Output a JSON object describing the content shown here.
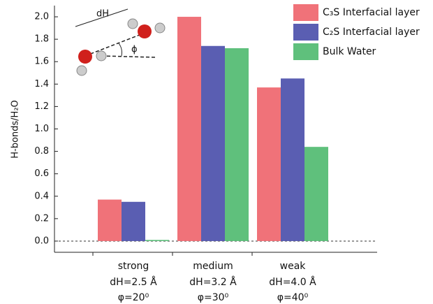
{
  "chart_data": {
    "type": "bar",
    "ylabel": "H-bonds/H₂O",
    "categories": [
      "strong",
      "medium",
      "weak"
    ],
    "category_details": [
      [
        "dH=2.5 Å",
        "φ=20⁰"
      ],
      [
        "dH=3.2 Å",
        "φ=30⁰"
      ],
      [
        "dH=4.0 Å",
        "φ=40⁰"
      ]
    ],
    "series": [
      {
        "name": "C₃S Interfacial layer",
        "color": "#f07279",
        "values": [
          0.37,
          2.0,
          1.37
        ]
      },
      {
        "name": "C₂S Interfacial layer",
        "color": "#5a5eb2",
        "values": [
          0.35,
          1.74,
          1.45
        ]
      },
      {
        "name": "Bulk Water",
        "color": "#5fc07c",
        "values": [
          0.01,
          1.72,
          0.84
        ]
      }
    ],
    "ylim": [
      -0.1,
      2.1
    ],
    "yticks": [
      {
        "value": 0,
        "label": "0.0"
      },
      {
        "value": 0.2,
        "label": "0.2"
      },
      {
        "value": 0.4,
        "label": "0.4"
      },
      {
        "value": 0.6,
        "label": "0.6"
      },
      {
        "value": 0.8,
        "label": "0.8"
      },
      {
        "value": 1,
        "label": "1.0"
      },
      {
        "value": 1.2,
        "label": "1.2"
      },
      {
        "value": 1.4,
        "label": "1.4"
      },
      {
        "value": 1.6,
        "label": "1.6"
      },
      {
        "value": 1.8,
        "label": "1.8"
      },
      {
        "value": 2,
        "label": "2.0"
      }
    ],
    "legend": "upper right",
    "inset_labels": [
      "dH",
      "ϕ"
    ]
  }
}
